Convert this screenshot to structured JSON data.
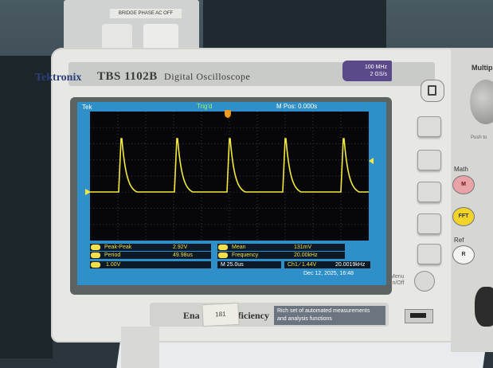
{
  "device": {
    "brand": "Tektronix",
    "model": "TBS 1102B",
    "type": "Digital Oscilloscope",
    "spec_bandwidth": "100 MHz",
    "spec_samplerate": "2 GS/s",
    "right_panel_title": "Multip",
    "push_label": "Push to",
    "menu_label_line1": "Menu",
    "menu_label_line2": "On/Off",
    "math_label": "Math",
    "math_button": "M",
    "fft_button": "FFT",
    "ref_label": "Ref",
    "ref_button": "R",
    "feature_title": "Ena",
    "feature_title_rest": "ficiency",
    "sticker_text": "181",
    "feature_desc_line1": "Rich set of automated measurements",
    "feature_desc_line2": "and analysis functions",
    "backdrop_label": "BRIDGE PHASE AC OFF"
  },
  "screen": {
    "status_left": "Tek",
    "trigger_status": "Trig'd",
    "position": "M Pos: 0.000s",
    "measurements": [
      {
        "label": "Peak-Peak",
        "value": "2.92V"
      },
      {
        "label": "Period",
        "value": "49.98us"
      },
      {
        "label": "Mean",
        "value": "131mV"
      },
      {
        "label": "Frequency",
        "value": "20.00kHz"
      }
    ],
    "channel_scale": "1.00V",
    "timebase": "M 25.0us",
    "trigger_info": "Ch1 ∕ 1.44V",
    "trigger_freq": "20.0019kHz",
    "date": "Dec 12, 2025, 16:48",
    "trace_color": "#f2e93b",
    "screen_bg": "#2f8fc8",
    "readout_fill": "#f2df4a"
  }
}
